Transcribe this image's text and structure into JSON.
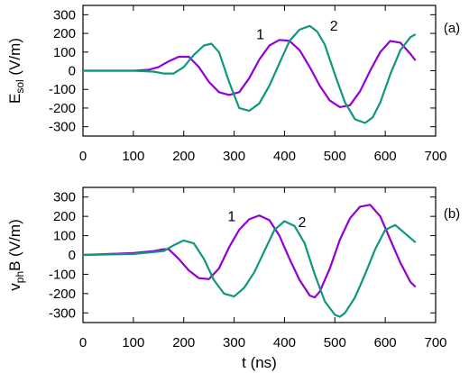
{
  "chart_data": [
    {
      "type": "line",
      "panel_label": "(a)",
      "ylabel_main": "E",
      "ylabel_sub": "sol",
      "ylabel_unit": " (V/m)",
      "xlim": [
        0,
        700
      ],
      "ylim": [
        -350,
        350
      ],
      "xticks": [
        "0",
        "100",
        "200",
        "300",
        "400",
        "500",
        "600",
        "700"
      ],
      "yticks": [
        "300",
        "200",
        "100",
        "0",
        "-100",
        "-200",
        "-300"
      ],
      "series": [
        {
          "name": "1",
          "color": "#9400d3",
          "x": [
            0,
            100,
            130,
            150,
            170,
            190,
            210,
            230,
            250,
            270,
            290,
            310,
            330,
            350,
            370,
            390,
            410,
            430,
            450,
            470,
            490,
            510,
            530,
            550,
            570,
            590,
            610,
            630,
            650,
            660
          ],
          "y": [
            0,
            0,
            5,
            20,
            50,
            75,
            75,
            20,
            -60,
            -115,
            -130,
            -115,
            -40,
            60,
            135,
            165,
            160,
            110,
            20,
            -80,
            -160,
            -195,
            -185,
            -110,
            0,
            100,
            160,
            150,
            90,
            55
          ]
        },
        {
          "name": "2",
          "color": "#11967e",
          "x": [
            0,
            100,
            140,
            160,
            180,
            200,
            220,
            240,
            255,
            270,
            290,
            310,
            330,
            350,
            370,
            390,
            410,
            430,
            450,
            465,
            480,
            500,
            520,
            540,
            560,
            575,
            590,
            610,
            630,
            650,
            660
          ],
          "y": [
            0,
            0,
            -5,
            -15,
            -15,
            20,
            85,
            135,
            145,
            100,
            -60,
            -200,
            -215,
            -175,
            -80,
            40,
            160,
            220,
            240,
            210,
            140,
            -20,
            -170,
            -260,
            -280,
            -250,
            -170,
            -20,
            110,
            180,
            195
          ]
        }
      ],
      "annotations": [
        {
          "text": "1",
          "x": 352,
          "y": 170
        },
        {
          "text": "2",
          "x": 498,
          "y": 215
        }
      ]
    },
    {
      "type": "line",
      "panel_label": "(b)",
      "ylabel_main": "v",
      "ylabel_sub": "ph",
      "ylabel_unit": "B (V/m)",
      "xlabel": "t (ns)",
      "xlim": [
        0,
        700
      ],
      "ylim": [
        -350,
        350
      ],
      "xticks": [
        "0",
        "100",
        "200",
        "300",
        "400",
        "500",
        "600",
        "700"
      ],
      "yticks": [
        "300",
        "200",
        "100",
        "0",
        "-100",
        "-200",
        "-300"
      ],
      "series": [
        {
          "name": "1",
          "color": "#9400d3",
          "x": [
            0,
            100,
            140,
            160,
            170,
            190,
            210,
            230,
            250,
            270,
            290,
            310,
            330,
            350,
            370,
            390,
            410,
            430,
            450,
            460,
            470,
            490,
            510,
            530,
            550,
            570,
            590,
            610,
            630,
            650,
            660
          ],
          "y": [
            0,
            10,
            20,
            30,
            30,
            -20,
            -80,
            -120,
            -125,
            -70,
            40,
            130,
            185,
            205,
            180,
            100,
            -20,
            -130,
            -210,
            -220,
            -190,
            -70,
            80,
            190,
            250,
            260,
            200,
            80,
            -40,
            -140,
            -165
          ]
        },
        {
          "name": "2",
          "color": "#11967e",
          "x": [
            0,
            100,
            140,
            160,
            180,
            200,
            220,
            240,
            260,
            280,
            300,
            320,
            340,
            360,
            380,
            400,
            420,
            440,
            460,
            480,
            500,
            510,
            520,
            540,
            560,
            580,
            600,
            620,
            640,
            660
          ],
          "y": [
            0,
            5,
            15,
            20,
            50,
            75,
            60,
            -20,
            -130,
            -200,
            -215,
            -170,
            -90,
            20,
            130,
            175,
            150,
            60,
            -100,
            -240,
            -310,
            -320,
            -300,
            -220,
            -100,
            30,
            130,
            155,
            110,
            65
          ]
        }
      ],
      "annotations": [
        {
          "text": "1",
          "x": 295,
          "y": 175
        },
        {
          "text": "2",
          "x": 435,
          "y": 145
        }
      ]
    }
  ]
}
